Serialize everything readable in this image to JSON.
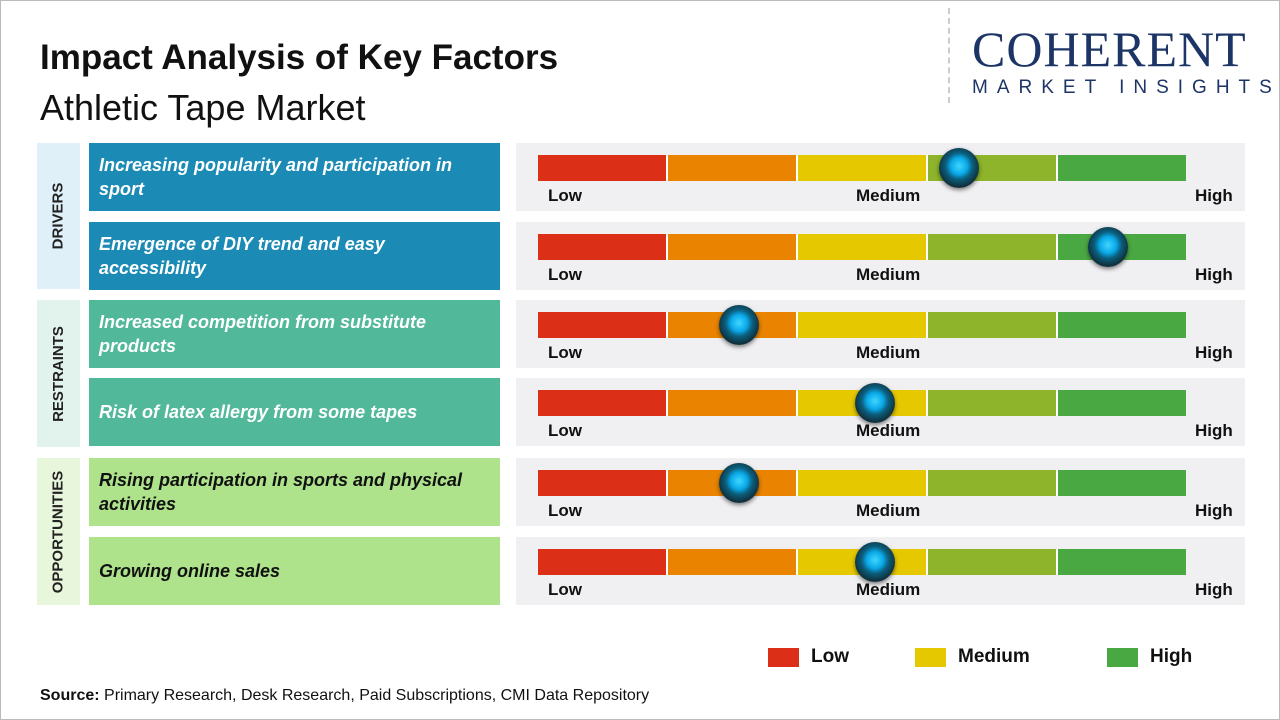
{
  "title": "Impact Analysis of Key Factors",
  "subtitle": "Athletic Tape Market",
  "logo": {
    "main": "COHERENT",
    "sub": "MARKET INSIGHTS"
  },
  "scale": {
    "low": "Low",
    "medium": "Medium",
    "high": "High"
  },
  "segment_colors": [
    "#dc2f18",
    "#ea8400",
    "#e6c800",
    "#8db42a",
    "#4aa843"
  ],
  "categories": [
    {
      "label": "DRIVERS",
      "color": "#1b8ab5",
      "bg": "#dff0f8"
    },
    {
      "label": "RESTRAINTS",
      "color": "#52b89a",
      "bg": "#e2f3ee"
    },
    {
      "label": "OPPORTUNITIES",
      "color": "#aee38c",
      "bg": "#e8f7dc"
    }
  ],
  "factors": [
    {
      "category": 0,
      "text": "Increasing popularity and participation in sport",
      "impact": 0.65
    },
    {
      "category": 0,
      "text": "Emergence of DIY trend and easy accessibility",
      "impact": 0.88
    },
    {
      "category": 1,
      "text": "Increased competition from substitute products",
      "impact": 0.31
    },
    {
      "category": 1,
      "text": "Risk of latex allergy from some tapes",
      "impact": 0.52
    },
    {
      "category": 2,
      "text": "Rising participation in sports and physical activities",
      "impact": 0.31
    },
    {
      "category": 2,
      "text": "Growing online sales",
      "impact": 0.52
    }
  ],
  "legend": [
    {
      "label": "Low",
      "color": "#dc2f18"
    },
    {
      "label": "Medium",
      "color": "#e6c800"
    },
    {
      "label": "High",
      "color": "#4aa843"
    }
  ],
  "source": {
    "label": "Source:",
    "text": " Primary Research, Desk Research, Paid Subscriptions, CMI Data Repository"
  }
}
